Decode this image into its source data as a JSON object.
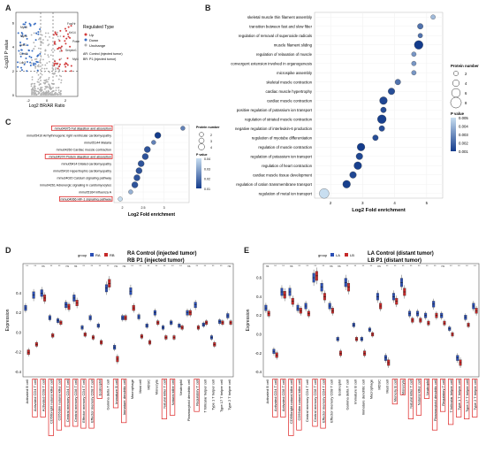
{
  "panels": {
    "A": {
      "letter": "A",
      "xlabel": "Log2 BR/AR Ratio",
      "ylabel": "-Log10 P value",
      "legend_title": "Regulated Type",
      "legend_items": [
        "Up",
        "Down",
        "Unchange"
      ],
      "legend_note_1": "AR: Control (injected tumor)",
      "legend_note_2": "BR: P1 (injected tumor)",
      "labels": [
        "Myh8",
        "Myh6",
        "Actc1",
        "Ckmt2",
        "Ldb3",
        "Fos/Hr",
        "Krt14",
        "Postn",
        "Serpine1",
        "Myl4"
      ],
      "xticks": [
        "-2",
        "0",
        "2"
      ],
      "yticks": [
        "0",
        "2",
        "4",
        "6"
      ],
      "colors": {
        "up": "#d23c3c",
        "down": "#3a6fc4",
        "unchange": "#b0b0b0"
      }
    },
    "B": {
      "letter": "B",
      "chart_data": {
        "type": "scatter",
        "xlabel": "Log2 Fold enrichment",
        "xlim": [
          1.5,
          5.5
        ],
        "xticks": [
          2,
          3,
          4,
          5
        ],
        "categories": [
          "skeletal muscle thin filament assembly",
          "transition between fast and slow fiber",
          "regulation of removal of superoxide radicals",
          "muscle filament sliding",
          "regulation of relaxation of muscle",
          "convergent extension involved in organogenesis",
          "microspike assembly",
          "skeletal muscle contraction",
          "cardiac muscle hypertrophy",
          "cardiac muscle contraction",
          "positive regulation of potassium ion transport",
          "regulation of striated muscle contraction",
          "negative regulation of interleukin-6 production",
          "regulation of myotube differentiation",
          "regulation of muscle contraction",
          "regulation of potassium ion transport",
          "regulation of heart contraction",
          "cardiac muscle tissue development",
          "regulation of cation transmembrane transport",
          "regulation of metal ion transport"
        ],
        "x": [
          5.2,
          4.8,
          4.8,
          4.75,
          4.6,
          4.6,
          4.6,
          4.1,
          3.9,
          3.65,
          3.65,
          3.6,
          3.6,
          3.4,
          2.95,
          2.9,
          2.85,
          2.7,
          2.5,
          1.8
        ],
        "protein_number": [
          2,
          3,
          2,
          6,
          2,
          2,
          2,
          3,
          4,
          5,
          3,
          6,
          3,
          3,
          5,
          4,
          5,
          4,
          5,
          7
        ],
        "p_value": [
          0.004,
          0.002,
          0.002,
          0.0005,
          0.003,
          0.003,
          0.003,
          0.002,
          0.001,
          0.0008,
          0.001,
          0.0006,
          0.001,
          0.001,
          0.0005,
          0.0008,
          0.0006,
          0.0008,
          0.0006,
          0.005
        ],
        "legend_size_title": "Protein number",
        "legend_sizes": [
          2,
          4,
          6,
          8
        ],
        "legend_color_title": "P value",
        "legend_color_ticks": [
          "0.005",
          "0.004",
          "0.003",
          "0.002",
          "0.001"
        ]
      }
    },
    "C": {
      "letter": "C",
      "chart_data": {
        "type": "scatter",
        "xlabel": "Log2 Fold enrichment",
        "xlim": [
          1.8,
          3.6
        ],
        "xticks": [
          2,
          2.5,
          3
        ],
        "categories": [
          "mmu04975 Fat digestion and absorption",
          "mmu05410 Arrhythmogenic right ventricular cardiomyopathy",
          "mmu05144 Malaria",
          "mmu04260 Cardiac muscle contraction",
          "mmu04974 Protein digestion and absorption",
          "mmu05414 Dilated cardiomyopathy",
          "mmu05410 Hypertrophic cardiomyopathy",
          "mmu04020 Calcium signaling pathway",
          "mmu04261 Adrenergic signaling in cardiomyocytes",
          "mmu05164 Influenza A",
          "mmu04066 HIF-1 signaling pathway"
        ],
        "highlighted": [
          true,
          false,
          false,
          false,
          true,
          false,
          false,
          false,
          false,
          false,
          true
        ],
        "x": [
          3.45,
          2.85,
          2.75,
          2.6,
          2.55,
          2.45,
          2.4,
          2.35,
          2.3,
          2.2,
          1.95
        ],
        "protein_number": [
          2,
          4,
          2,
          4,
          4,
          4,
          4,
          4,
          4,
          2,
          2
        ],
        "p_value": [
          0.02,
          0.005,
          0.02,
          0.01,
          0.01,
          0.01,
          0.01,
          0.01,
          0.01,
          0.03,
          0.04
        ],
        "legend_size_title": "Protein number",
        "legend_sizes": [
          2,
          3,
          4
        ],
        "legend_color_title": "P value",
        "legend_color_ticks": [
          "0.04",
          "0.03",
          "0.02",
          "0.01"
        ]
      }
    },
    "D": {
      "letter": "D",
      "ylabel": "Expression",
      "group_label": "group",
      "groups": [
        "RA",
        "RB"
      ],
      "title_1": "RA Control (injected tumor)",
      "title_2": "RB P1 (injected tumor)",
      "yticks": [
        "0.4",
        "0.2",
        "0.0",
        "-0.2",
        "-0.4"
      ],
      "chart_data": {
        "type": "box",
        "ylim": [
          -0.45,
          0.7
        ],
        "categories": [
          "Activated B cell",
          "Activated CD4 T cell",
          "Activated CD8 T cell",
          "CD56bright natural killer cell",
          "CD56dim natural killer cell",
          "Central memory CD4 T cell",
          "Central memory CD8 T cell",
          "Effector memory CD4 T cell",
          "Effector memory CD8 T cell",
          "Eosinophil",
          "Gamma delta T cell",
          "Immature B cell",
          "Immature dendritic cell",
          "Macrophage",
          "Mast cell",
          "MDSC",
          "Monocyte",
          "Natural killer T cell",
          "Natural killer cell",
          "Neutrophil",
          "Plasmacytoid dendritic cell",
          "Regulatory T cell",
          "T follicular helper cell",
          "Type 1 T helper cell",
          "Type 17 T helper cell",
          "Type 2 T helper cell"
        ],
        "highlighted": [
          false,
          true,
          true,
          true,
          true,
          true,
          true,
          true,
          true,
          true,
          false,
          true,
          true,
          false,
          false,
          false,
          false,
          true,
          true,
          false,
          false,
          true,
          false,
          false,
          false,
          false
        ],
        "RA": [
          0.25,
          0.38,
          0.4,
          0.15,
          0.12,
          0.28,
          0.35,
          0.05,
          0.15,
          0.07,
          0.45,
          -0.15,
          0.15,
          0.42,
          0.16,
          0.07,
          0.2,
          0.05,
          0.1,
          0.07,
          0.2,
          0.28,
          0.08,
          -0.05,
          0.11,
          0.17
        ],
        "RB": [
          -0.2,
          -0.12,
          0.35,
          -0.03,
          0.1,
          0.26,
          0.3,
          -0.02,
          -0.05,
          -0.1,
          0.5,
          -0.27,
          0.15,
          0.25,
          -0.04,
          -0.1,
          0.1,
          -0.05,
          -0.05,
          0.05,
          0.2,
          0.05,
          0.1,
          -0.12,
          0.1,
          0.1
        ],
        "significance": [
          "**",
          "**",
          "ns",
          "**",
          "**",
          "ns",
          "ns",
          "**",
          "**",
          "**",
          "**",
          "ns",
          "ns",
          "**",
          "**",
          "**",
          "**",
          "**",
          "**",
          "**",
          "ns",
          "**",
          "**",
          "**",
          "**",
          "ns"
        ]
      }
    },
    "E": {
      "letter": "E",
      "ylabel": "Expression",
      "group_label": "group",
      "groups": [
        "LA",
        "LB"
      ],
      "title_1": "LA Control (distant tumor)",
      "title_2": "LB P1 (distant tumor)",
      "yticks": [
        "0.6",
        "0.4",
        "0.2",
        "0.0",
        "-0.2",
        "-0.4"
      ],
      "chart_data": {
        "type": "box",
        "ylim": [
          -0.45,
          0.75
        ],
        "categories": [
          "Activated B cell",
          "Activated CD4 T cell",
          "Activated CD8 T cell",
          "CD56bright natural killer cell",
          "CD56dim natural killer cell",
          "Central memory CD4 T cell",
          "Central memory CD8 T cell",
          "Effector memory CD4 T cell",
          "Effector memory CD8 T cell",
          "Eosinophil",
          "Gamma delta T cell",
          "Immature B cell",
          "Immature dendritic cell",
          "Macrophage",
          "MDSC",
          "Mast cell",
          "Memory B cell",
          "Monocyte",
          "Natural killer T cell",
          "Natural killer cell",
          "Neutrophil",
          "Plasmacytoid dendritic cell",
          "Regulatory T cell",
          "T follicular helper cell",
          "Type 1 T helper cell",
          "Type 17 T helper cell",
          "Type 2 T helper cell"
        ],
        "highlighted": [
          false,
          true,
          true,
          true,
          true,
          false,
          true,
          true,
          false,
          false,
          false,
          false,
          false,
          false,
          false,
          false,
          true,
          true,
          true,
          true,
          true,
          true,
          true,
          true,
          true,
          true,
          true
        ],
        "LA": [
          0.28,
          -0.18,
          0.45,
          0.45,
          0.28,
          0.3,
          0.6,
          0.5,
          0.3,
          -0.05,
          0.55,
          0.1,
          -0.05,
          0.05,
          0.4,
          -0.25,
          0.4,
          0.55,
          0.22,
          0.22,
          0.2,
          0.32,
          0.2,
          0.06,
          -0.25,
          0.18,
          0.3
        ],
        "LB": [
          0.22,
          -0.22,
          0.42,
          0.35,
          0.25,
          0.22,
          0.62,
          0.4,
          0.25,
          -0.2,
          0.5,
          -0.05,
          -0.2,
          0.0,
          0.3,
          -0.3,
          0.35,
          0.45,
          0.15,
          0.15,
          0.12,
          0.2,
          0.12,
          0.0,
          -0.3,
          0.1,
          0.25
        ],
        "significance": [
          "ns",
          "**",
          "**",
          "ns",
          "**",
          "**",
          "**",
          "**",
          "ns",
          "ns",
          "**",
          "**",
          "**",
          "**",
          "ns",
          "**",
          "**",
          "**",
          "**",
          "**",
          "**",
          "**",
          "ns",
          "**",
          "**",
          "**",
          "**"
        ]
      }
    }
  }
}
